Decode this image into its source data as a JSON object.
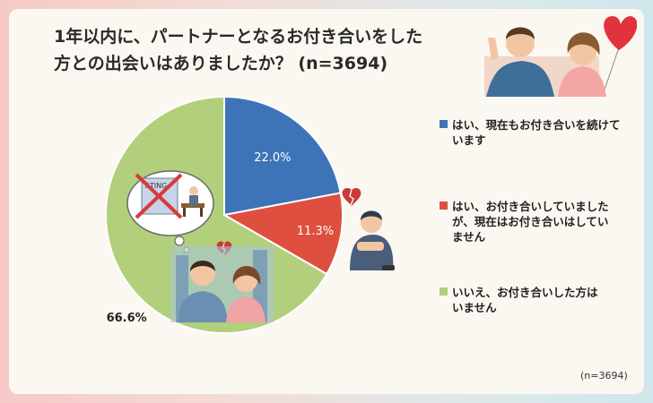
{
  "title_line1": "1年以内に、パートナーとなるお付き合いをした",
  "title_line2": "方との出会いはありましたか？ (n=3694)",
  "footnote": "(n=3694)",
  "sign_text": "ATING",
  "colors": {
    "blue": "#3d74b7",
    "red": "#df4f3f",
    "green": "#b2cf7b"
  },
  "chart_data": {
    "type": "pie",
    "title": "1年以内に、パートナーとなるお付き合いをした方との出会いはありましたか？ (n=3694)",
    "legend_position": "right",
    "slices": [
      {
        "label": "はい、現在もお付き合いを続けています",
        "value": 22.0,
        "display": "22.0%",
        "color": "#3d74b7"
      },
      {
        "label": "はい、お付き合いしていましたが、現在はお付き合いはしていません",
        "value": 11.3,
        "display": "11.3%",
        "color": "#df4f3f"
      },
      {
        "label": "いいえ、お付き合いした方はいません",
        "value": 66.6,
        "display": "66.6%",
        "color": "#b2cf7b"
      }
    ],
    "legend": [
      {
        "line1": "はい、現在もお付き合いを続けて",
        "line2": "います"
      },
      {
        "line1": "はい、お付き合いしていました",
        "line2": "が、現在はお付き合いはしてい",
        "line3": "ません"
      },
      {
        "line1": "いいえ、お付き合いした方は",
        "line2": "いません"
      }
    ]
  }
}
